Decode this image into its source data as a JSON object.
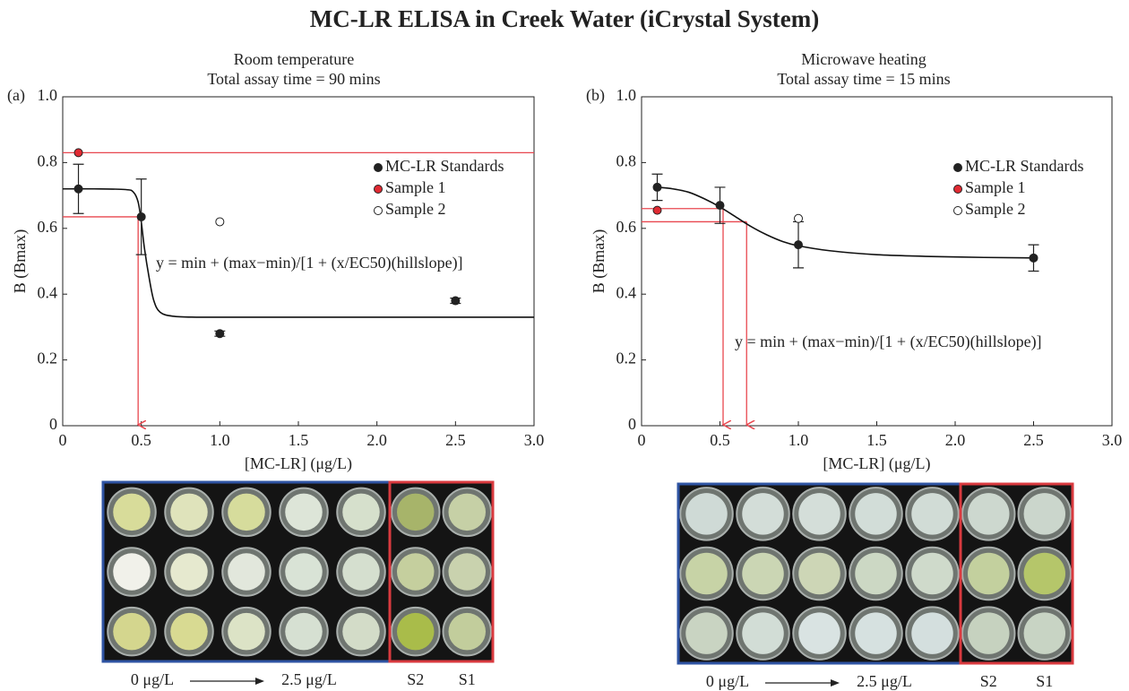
{
  "figure_title": "MC-LR ELISA in Creek Water (iCrystal System)",
  "chart_data": [
    {
      "type": "scatter",
      "panel_label": "(a)",
      "title": "Room temperature",
      "subtitle": "Total assay time = 90 mins",
      "title_color": "#e8474f",
      "xlabel": "[MC-LR] (μg/L)",
      "ylabel": "B (Bmax)",
      "xlim": [
        0,
        3
      ],
      "ylim": [
        0,
        1
      ],
      "xticks": [
        0,
        0.5,
        {
          "value": 1,
          "label": "1.0"
        },
        1.5,
        {
          "value": 2,
          "label": "2.0"
        },
        2.5,
        {
          "value": 3,
          "label": "3.0"
        }
      ],
      "yticks": [
        0,
        0.2,
        0.4,
        0.6,
        0.8,
        {
          "value": 1,
          "label": "1.0"
        }
      ],
      "legend": "upper right",
      "series": [
        {
          "name": "MC-LR Standards",
          "color": "#222222",
          "x": [
            0.1,
            0.5,
            1.0,
            2.5
          ],
          "values": [
            0.72,
            0.635,
            0.28,
            0.38
          ],
          "errors": [
            0.075,
            0.115,
            0.008,
            0.008
          ]
        },
        {
          "name": "Sample 1",
          "color": "#e02a32",
          "x": [
            0.1
          ],
          "values": [
            0.83
          ]
        },
        {
          "name": "Sample 2",
          "color": "#ffffff",
          "x": [
            1.0
          ],
          "values": [
            0.62
          ]
        }
      ],
      "curve": {
        "color": "#111111",
        "x": [
          0,
          0.2,
          0.4,
          0.45,
          0.48,
          0.5,
          0.52,
          0.55,
          0.58,
          0.62,
          0.7,
          0.85,
          1.0,
          2.0,
          3.0
        ],
        "values": [
          0.72,
          0.72,
          0.718,
          0.71,
          0.68,
          0.62,
          0.54,
          0.45,
          0.38,
          0.345,
          0.333,
          0.33,
          0.33,
          0.33,
          0.33
        ]
      },
      "equation": "y = min + (max−min)/[1 + (x/EC50)(hillslope)]",
      "equation_color": "#e8474f",
      "ref_color": "#e8474f",
      "hlines": [
        {
          "y": 0.83,
          "x_end": 3
        },
        {
          "y": 0.635,
          "x_end": 0.48
        }
      ],
      "arrows": [
        {
          "x": 0.48,
          "y_start": 0.635
        }
      ],
      "plate_labels": [
        "0 μg/L",
        "2.5 μg/L",
        "S2",
        "S1"
      ]
    },
    {
      "type": "scatter",
      "panel_label": "(b)",
      "title": "Microwave heating",
      "subtitle": "Total assay time = 15 mins",
      "title_color": "#3d5fa8",
      "xlabel": "[MC-LR] (μg/L)",
      "ylabel": "B (Bmax)",
      "xlim": [
        0,
        3
      ],
      "ylim": [
        0,
        1
      ],
      "xticks": [
        0,
        0.5,
        {
          "value": 1,
          "label": "1.0"
        },
        1.5,
        {
          "value": 2,
          "label": "2.0"
        },
        2.5,
        {
          "value": 3,
          "label": "3.0"
        }
      ],
      "yticks": [
        0,
        0.2,
        0.4,
        0.6,
        0.8,
        {
          "value": 1,
          "label": "1.0"
        }
      ],
      "legend": "upper right",
      "series": [
        {
          "name": "MC-LR Standards",
          "color": "#222222",
          "x": [
            0.1,
            0.5,
            1.0,
            2.5
          ],
          "values": [
            0.725,
            0.67,
            0.55,
            0.51
          ],
          "errors": [
            0.04,
            0.055,
            0.07,
            0.04
          ]
        },
        {
          "name": "Sample 1",
          "color": "#e02a32",
          "x": [
            0.1
          ],
          "values": [
            0.655
          ]
        },
        {
          "name": "Sample 2",
          "color": "#ffffff",
          "x": [
            1.0
          ],
          "values": [
            0.63
          ]
        }
      ],
      "curve": {
        "color": "#111111",
        "x": [
          0.1,
          0.2,
          0.3,
          0.4,
          0.5,
          0.6,
          0.7,
          0.8,
          0.9,
          1.0,
          1.2,
          1.5,
          2.0,
          2.5
        ],
        "values": [
          0.725,
          0.72,
          0.71,
          0.69,
          0.665,
          0.635,
          0.605,
          0.58,
          0.56,
          0.547,
          0.532,
          0.52,
          0.513,
          0.51
        ]
      },
      "equation": "y = min + (max−min)/[1 + (x/EC50)(hillslope)]",
      "equation_color": "#3d5fa8",
      "ref_color": "#e8474f",
      "hlines": [
        {
          "y": 0.66,
          "x_end": 0.52
        },
        {
          "y": 0.62,
          "x_end": 0.67
        }
      ],
      "arrows": [
        {
          "x": 0.52,
          "y_start": 0.66
        },
        {
          "x": 0.67,
          "y_start": 0.62
        }
      ],
      "plate_labels": [
        "0 μg/L",
        "2.5 μg/L",
        "S2",
        "S1"
      ]
    }
  ]
}
